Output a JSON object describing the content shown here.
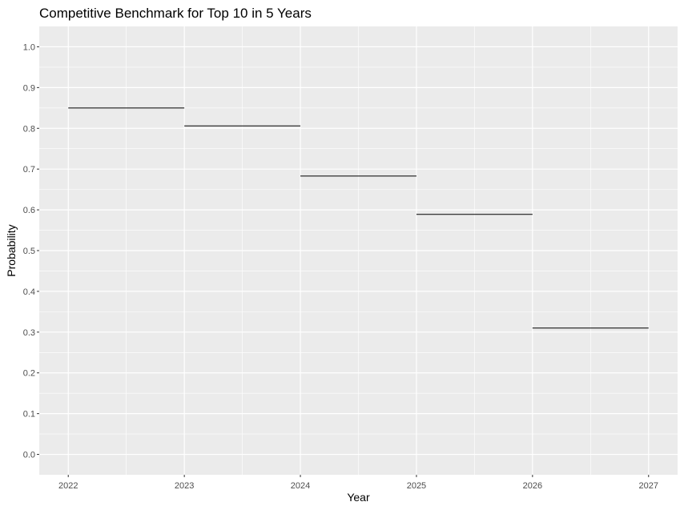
{
  "chart_data": {
    "type": "line",
    "title": "Competitive Benchmark for Top 10 in 5 Years",
    "xlabel": "Year",
    "ylabel": "Probability",
    "xlim": [
      2021.75,
      2027.25
    ],
    "ylim": [
      -0.05,
      1.05
    ],
    "x_ticks": [
      "2022",
      "2023",
      "2024",
      "2025",
      "2026",
      "2027"
    ],
    "y_ticks": [
      "0.0",
      "0.1",
      "0.2",
      "0.3",
      "0.4",
      "0.5",
      "0.6",
      "0.7",
      "0.8",
      "0.9",
      "1.0"
    ],
    "grid": true,
    "background": "#ebebeb",
    "grid_color": "#ffffff",
    "line_color": "#000000",
    "segments": [
      {
        "x_start": 2022,
        "x_end": 2023,
        "y": 0.85
      },
      {
        "x_start": 2023,
        "x_end": 2024,
        "y": 0.806
      },
      {
        "x_start": 2024,
        "x_end": 2025,
        "y": 0.683
      },
      {
        "x_start": 2025,
        "x_end": 2026,
        "y": 0.589
      },
      {
        "x_start": 2026,
        "x_end": 2027,
        "y": 0.31
      }
    ]
  }
}
